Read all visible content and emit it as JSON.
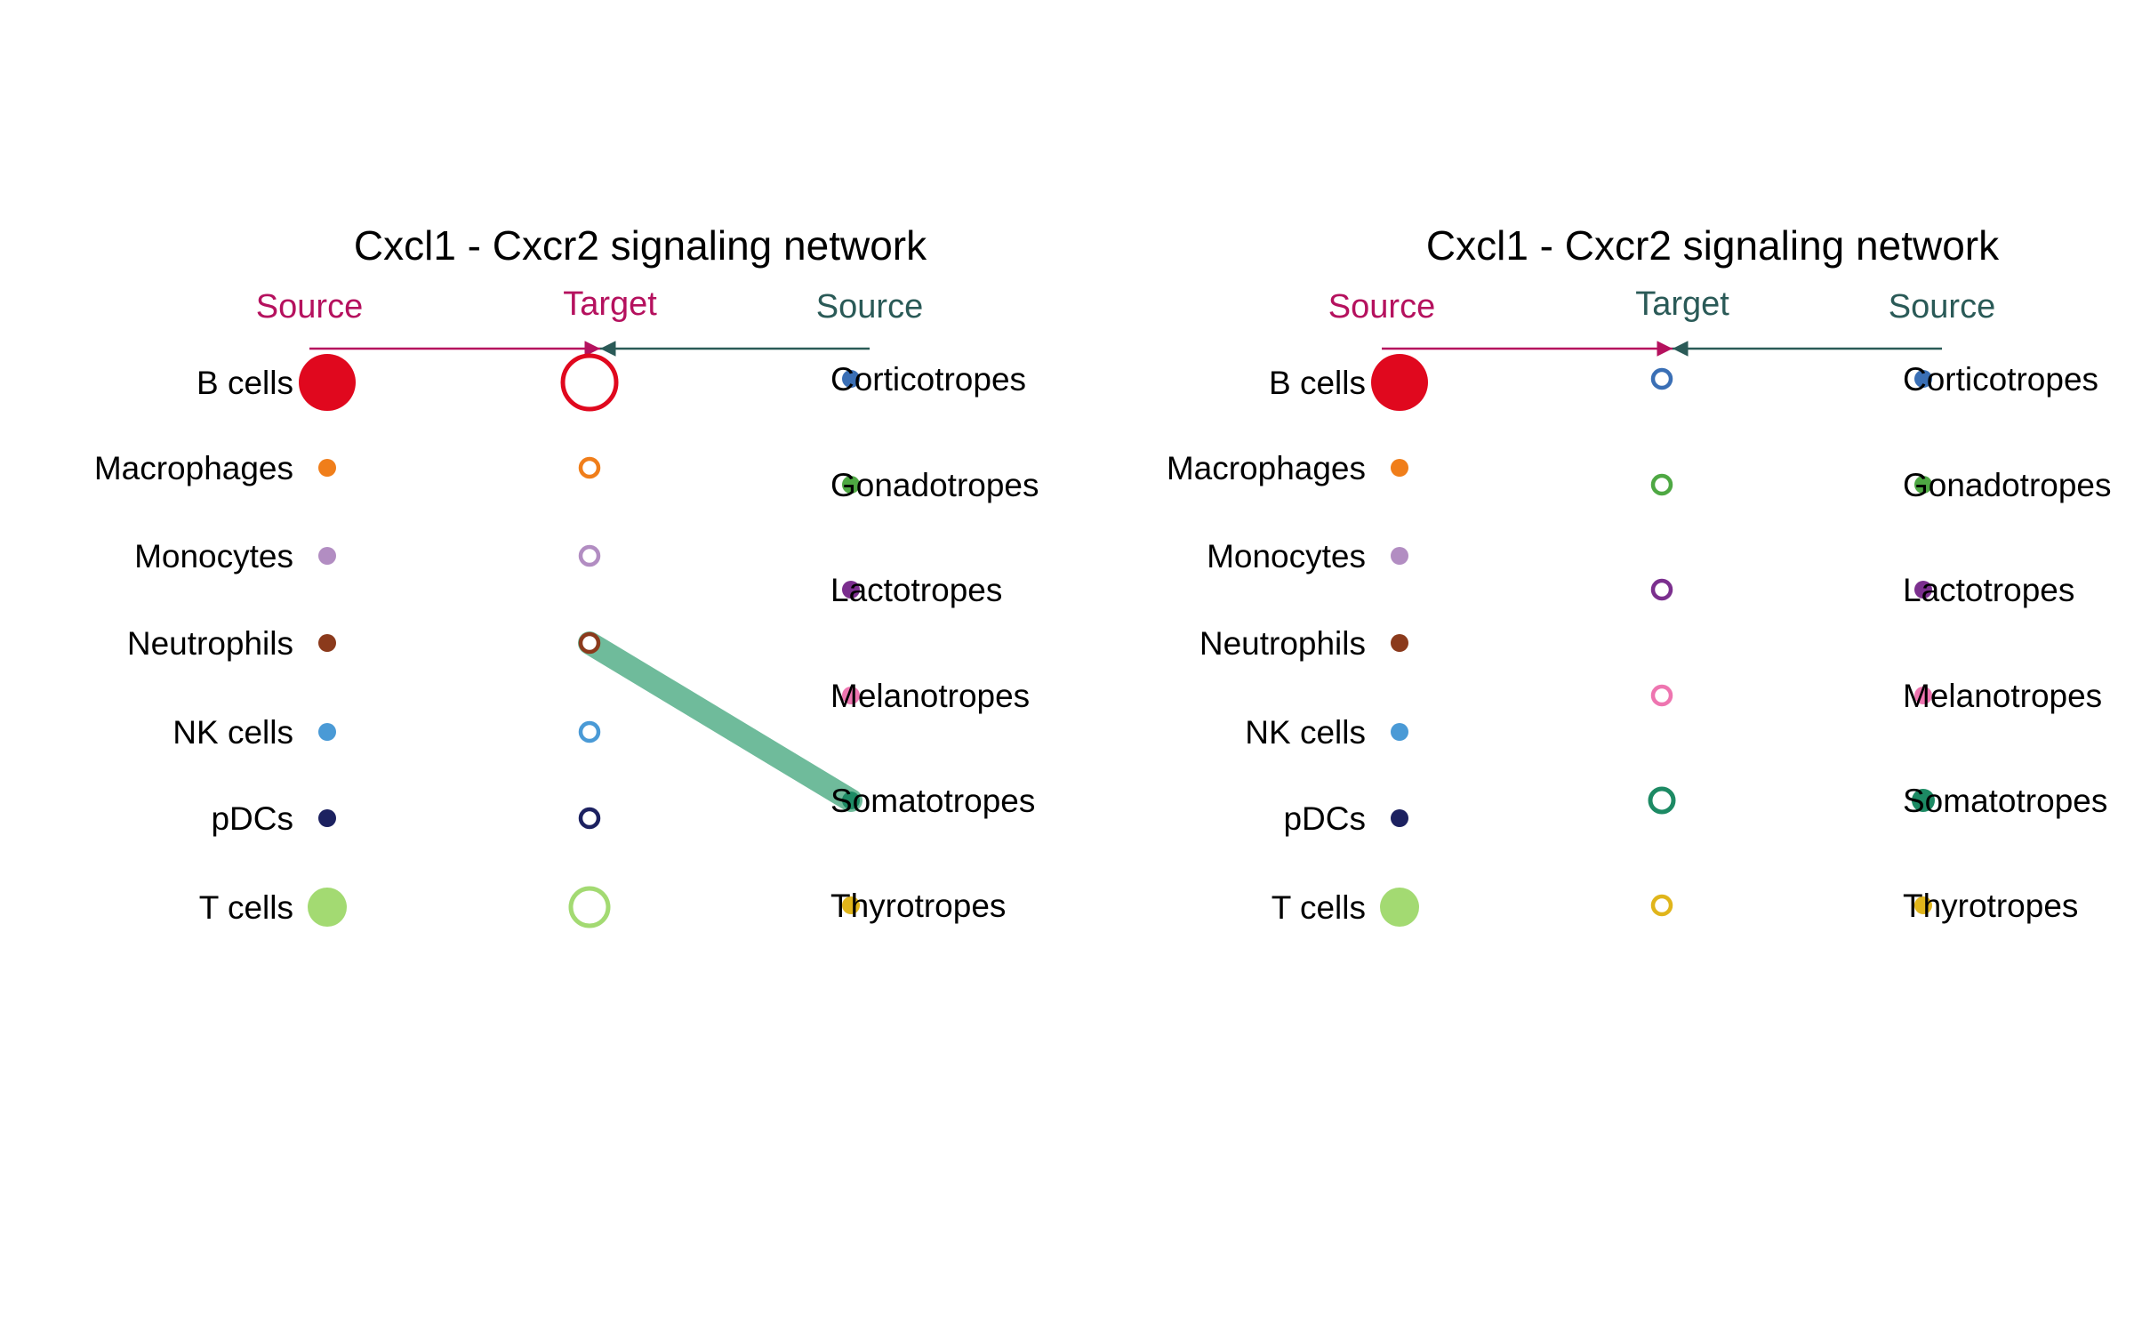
{
  "colors": {
    "source_header": "#b5115e",
    "source_header_right": "#2a5a57",
    "target_header_left": "#b5115e",
    "target_header_right": "#2a5a57",
    "arrow_left": "#b5115e",
    "arrow_right": "#2a5a57",
    "edge": "#6fbb9b"
  },
  "panels": [
    {
      "title": "Cxcl1  - Cxcr2 signaling network",
      "source_header": "Source",
      "target_header": "Target",
      "right_header": "Source",
      "left_nodes": [
        {
          "label": "B cells",
          "color": "#e0081e",
          "size": "large"
        },
        {
          "label": "Macrophages",
          "color": "#f07e1a",
          "size": "small"
        },
        {
          "label": "Monocytes",
          "color": "#b28dc2",
          "size": "small"
        },
        {
          "label": "Neutrophils",
          "color": "#8b3a1c",
          "size": "small"
        },
        {
          "label": "NK cells",
          "color": "#4a9ad6",
          "size": "small"
        },
        {
          "label": "pDCs",
          "color": "#1c2160",
          "size": "small"
        },
        {
          "label": "T cells",
          "color": "#a3da72",
          "size": "medium"
        }
      ],
      "target_nodes": [
        {
          "color": "#e0081e",
          "size": "large"
        },
        {
          "color": "#f07e1a",
          "size": "small"
        },
        {
          "color": "#b28dc2",
          "size": "small"
        },
        {
          "color": "#8b3a1c",
          "size": "small"
        },
        {
          "color": "#4a9ad6",
          "size": "small"
        },
        {
          "color": "#1c2160",
          "size": "small"
        },
        {
          "color": "#a3da72",
          "size": "medium"
        }
      ],
      "right_nodes": [
        {
          "label": "Corticotropes",
          "color": "#3a6fb5",
          "size": "small"
        },
        {
          "label": "Gonadotropes",
          "color": "#4ea843",
          "size": "small"
        },
        {
          "label": "Lactotropes",
          "color": "#7b2f8e",
          "size": "small"
        },
        {
          "label": "Melanotropes",
          "color": "#ee75b0",
          "size": "small"
        },
        {
          "label": "Somatotropes",
          "color": "#1d8a64",
          "size": "small"
        },
        {
          "label": "Thyrotropes",
          "color": "#e0b51b",
          "size": "small"
        }
      ],
      "edges": [
        {
          "from_right": 4,
          "to_target": 3
        }
      ]
    },
    {
      "title": "Cxcl1  - Cxcr2 signaling network",
      "source_header": "Source",
      "target_header": "Target",
      "right_header": "Source",
      "left_nodes": [
        {
          "label": "B cells",
          "color": "#e0081e",
          "size": "large"
        },
        {
          "label": "Macrophages",
          "color": "#f07e1a",
          "size": "small"
        },
        {
          "label": "Monocytes",
          "color": "#b28dc2",
          "size": "small"
        },
        {
          "label": "Neutrophils",
          "color": "#8b3a1c",
          "size": "small"
        },
        {
          "label": "NK cells",
          "color": "#4a9ad6",
          "size": "small"
        },
        {
          "label": "pDCs",
          "color": "#1c2160",
          "size": "small"
        },
        {
          "label": "T cells",
          "color": "#a3da72",
          "size": "medium"
        }
      ],
      "target_nodes": [
        {
          "color": "#3a6fb5",
          "size": "small"
        },
        {
          "color": "#4ea843",
          "size": "small"
        },
        {
          "color": "#7b2f8e",
          "size": "small"
        },
        {
          "color": "#ee75b0",
          "size": "small"
        },
        {
          "color": "#1d8a64",
          "size": "smallmedium"
        },
        {
          "color": "#e0b51b",
          "size": "small"
        }
      ],
      "right_nodes": [
        {
          "label": "Corticotropes",
          "color": "#3a6fb5",
          "size": "small"
        },
        {
          "label": "Gonadotropes",
          "color": "#4ea843",
          "size": "small"
        },
        {
          "label": "Lactotropes",
          "color": "#7b2f8e",
          "size": "small"
        },
        {
          "label": "Melanotropes",
          "color": "#ee75b0",
          "size": "small"
        },
        {
          "label": "Somatotropes",
          "color": "#1d8a64",
          "size": "smallmedium"
        },
        {
          "label": "Thyrotropes",
          "color": "#e0b51b",
          "size": "small"
        }
      ],
      "edges": []
    }
  ]
}
